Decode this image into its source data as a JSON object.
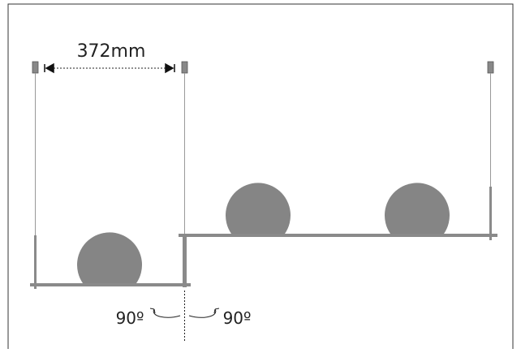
{
  "dimension": {
    "label": "372mm"
  },
  "rotation": {
    "left": "90º",
    "right": "90º"
  }
}
